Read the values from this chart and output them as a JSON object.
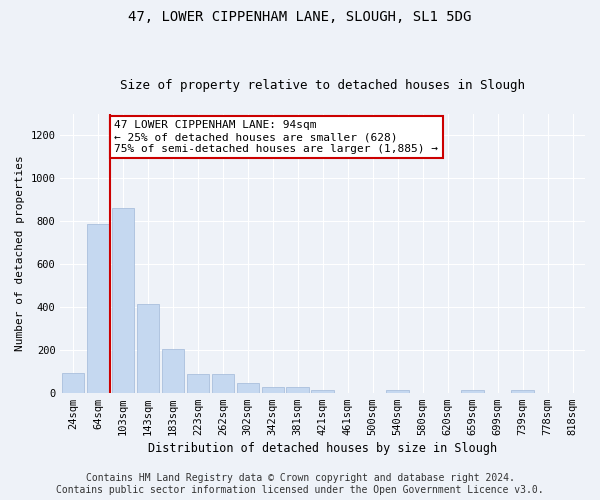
{
  "title": "47, LOWER CIPPENHAM LANE, SLOUGH, SL1 5DG",
  "subtitle": "Size of property relative to detached houses in Slough",
  "xlabel": "Distribution of detached houses by size in Slough",
  "ylabel": "Number of detached properties",
  "categories": [
    "24sqm",
    "64sqm",
    "103sqm",
    "143sqm",
    "183sqm",
    "223sqm",
    "262sqm",
    "302sqm",
    "342sqm",
    "381sqm",
    "421sqm",
    "461sqm",
    "500sqm",
    "540sqm",
    "580sqm",
    "620sqm",
    "659sqm",
    "699sqm",
    "739sqm",
    "778sqm",
    "818sqm"
  ],
  "values": [
    90,
    785,
    860,
    415,
    205,
    85,
    85,
    47,
    25,
    25,
    12,
    0,
    0,
    12,
    0,
    0,
    12,
    0,
    12,
    0,
    0
  ],
  "bar_color": "#c5d8f0",
  "bar_edge_color": "#a0b8d8",
  "vline_x": 1.5,
  "vline_color": "#cc0000",
  "annotation_text": "47 LOWER CIPPENHAM LANE: 94sqm\n← 25% of detached houses are smaller (628)\n75% of semi-detached houses are larger (1,885) →",
  "annotation_box_color": "#ffffff",
  "annotation_box_edge_color": "#cc0000",
  "ylim": [
    0,
    1300
  ],
  "yticks": [
    0,
    200,
    400,
    600,
    800,
    1000,
    1200
  ],
  "footer_line1": "Contains HM Land Registry data © Crown copyright and database right 2024.",
  "footer_line2": "Contains public sector information licensed under the Open Government Licence v3.0.",
  "background_color": "#eef2f8",
  "plot_bg_color": "#eef2f8",
  "grid_color": "#ffffff",
  "title_fontsize": 10,
  "subtitle_fontsize": 9,
  "xlabel_fontsize": 8.5,
  "ylabel_fontsize": 8,
  "tick_fontsize": 7.5,
  "footer_fontsize": 7,
  "annotation_fontsize": 8
}
